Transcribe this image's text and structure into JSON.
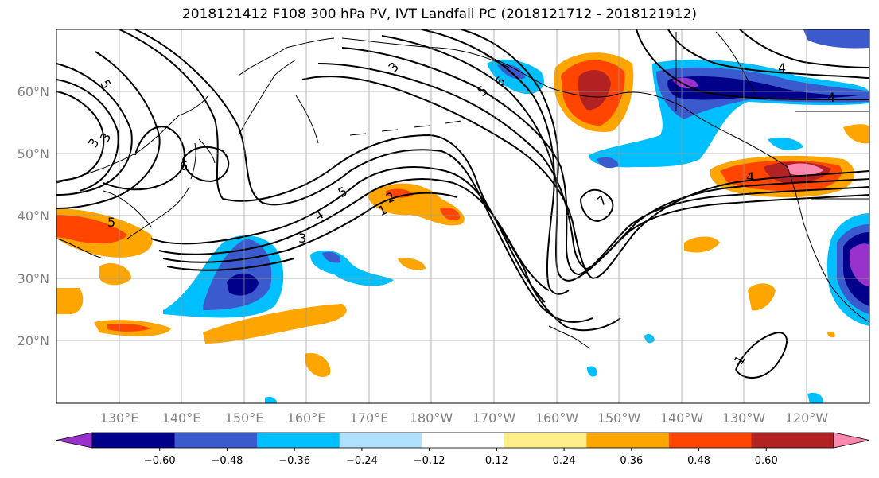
{
  "title": "2018121412 F108 300 hPa PV, IVT Landfall PC (2018121712 - 2018121912)",
  "map": {
    "lon_range": [
      120,
      250
    ],
    "lat_range": [
      10,
      70
    ],
    "lat_ticks": [
      {
        "value": 60,
        "label": "60°N"
      },
      {
        "value": 50,
        "label": "50°N"
      },
      {
        "value": 40,
        "label": "40°N"
      },
      {
        "value": 30,
        "label": "30°N"
      },
      {
        "value": 20,
        "label": "20°N"
      }
    ],
    "lon_ticks": [
      {
        "value": 130,
        "label": "130°E"
      },
      {
        "value": 140,
        "label": "140°E"
      },
      {
        "value": 150,
        "label": "150°E"
      },
      {
        "value": 160,
        "label": "160°E"
      },
      {
        "value": 170,
        "label": "170°E"
      },
      {
        "value": 180,
        "label": "180°W"
      },
      {
        "value": 190,
        "label": "170°W"
      },
      {
        "value": 200,
        "label": "160°W"
      },
      {
        "value": 210,
        "label": "150°W"
      },
      {
        "value": 220,
        "label": "140°W"
      },
      {
        "value": 230,
        "label": "130°W"
      },
      {
        "value": 240,
        "label": "120°W"
      }
    ],
    "grid": true,
    "contour_labels": [
      "5",
      "3",
      "3",
      "6",
      "5",
      "3",
      "6",
      "5",
      "5",
      "4",
      "2",
      "1",
      "3",
      "7",
      "4",
      "4",
      "4",
      "1"
    ]
  },
  "colorbar": {
    "colors": [
      "#9932cc",
      "#00008b",
      "#3a5acd",
      "#00bfff",
      "#b0e0ff",
      "#ffffff",
      "#ffee88",
      "#ffa500",
      "#ff4500",
      "#b22222",
      "#ff88b0"
    ],
    "tick_labels": [
      "−0.60",
      "−0.48",
      "−0.36",
      "−0.24",
      "−0.12",
      "0.12",
      "0.24",
      "0.36",
      "0.48",
      "0.60"
    ]
  }
}
